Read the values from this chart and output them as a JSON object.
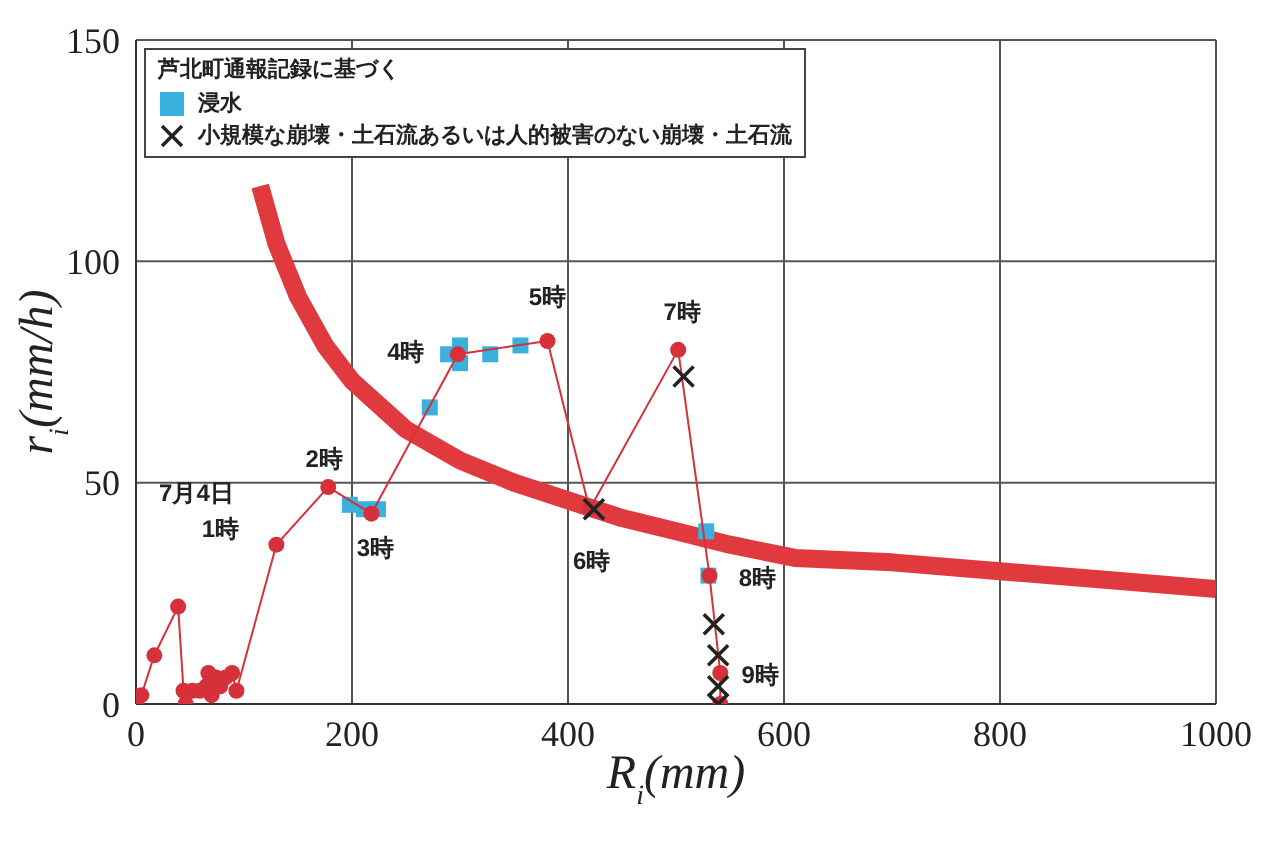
{
  "chart_data": {
    "type": "scatter",
    "xlabel": "R$_{i}$(mm)",
    "ylabel": "r$_{i}$(mm/h)",
    "legend_title": "芦北町通報記録に基づく",
    "xlim": [
      0,
      1000
    ],
    "xticks": [
      0,
      200,
      400,
      600,
      800,
      1000
    ],
    "ylim": [
      0,
      150
    ],
    "yticks": [
      0,
      50,
      100,
      150
    ],
    "grid": true,
    "legend": "top left",
    "series": [
      {
        "type": "line",
        "color": "#e03a3e",
        "marker": "none",
        "line_style": "solid",
        "x": [
          115,
          130,
          150,
          175,
          200,
          250,
          300,
          350,
          400,
          450,
          500,
          550,
          610,
          700,
          800,
          900,
          1000
        ],
        "values": [
          117,
          104,
          92,
          81,
          73,
          62,
          55,
          50,
          46,
          42,
          39,
          36,
          33,
          32,
          30,
          28,
          26
        ]
      },
      {
        "type": "scatter",
        "name": "浸水",
        "color": "#3ab0dc",
        "marker": "square",
        "x": [
          198,
          211,
          224,
          272,
          289,
          300,
          300,
          328,
          356,
          528,
          530
        ],
        "values": [
          45,
          44,
          44,
          67,
          79,
          81,
          77,
          79,
          81,
          39,
          29
        ]
      },
      {
        "type": "line",
        "color": "#d6303a",
        "marker": "circle",
        "line_style": "solid",
        "x": [
          0,
          5,
          17,
          39,
          44,
          46,
          52,
          59,
          65,
          67,
          74,
          70,
          78,
          83,
          89,
          93,
          130,
          178,
          218,
          298,
          381,
          420,
          502,
          531,
          541,
          541
        ],
        "values": [
          0,
          2,
          11,
          22,
          3,
          0,
          3,
          3,
          4,
          7,
          6,
          2,
          4,
          6,
          7,
          3,
          36,
          49,
          43,
          79,
          82,
          44,
          80,
          29,
          7,
          0
        ]
      },
      {
        "type": "scatter",
        "name": "小規模な崩壊・土石流あるいは人的被害のない崩壊・土石流",
        "color": "#222222",
        "marker": "cross",
        "x": [
          424,
          507,
          535,
          539,
          539,
          539
        ],
        "values": [
          44,
          74,
          18,
          11,
          4,
          0
        ]
      }
    ],
    "annotations": [
      {
        "text": "7月4日",
        "x": 130,
        "y": 36
      },
      {
        "text": "1時",
        "x": 130,
        "y": 36
      },
      {
        "text": "2時",
        "x": 178,
        "y": 49
      },
      {
        "text": "3時",
        "x": 218,
        "y": 43
      },
      {
        "text": "4時",
        "x": 298,
        "y": 79
      },
      {
        "text": "5時",
        "x": 381,
        "y": 82
      },
      {
        "text": "6時",
        "x": 420,
        "y": 44
      },
      {
        "text": "7時",
        "x": 502,
        "y": 80
      },
      {
        "text": "8時",
        "x": 531,
        "y": 29
      },
      {
        "text": "9時",
        "x": 541,
        "y": 7
      }
    ]
  }
}
